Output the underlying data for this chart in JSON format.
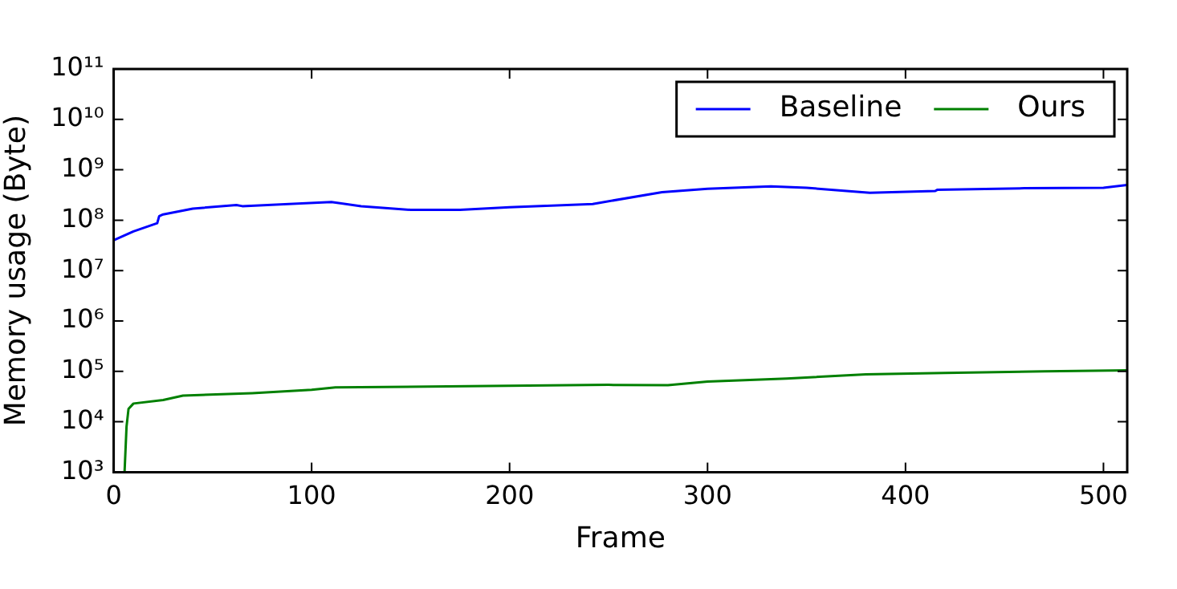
{
  "chart_data": {
    "type": "line",
    "xlabel": "Frame",
    "ylabel": "Memory usage (Byte)",
    "log": "y",
    "legend": "top right",
    "marker": "none",
    "line_style": "solid",
    "xlim": [
      0,
      512
    ],
    "xticks": [
      0,
      100,
      200,
      300,
      400,
      500
    ],
    "ylim": [
      1000,
      100000000000
    ],
    "yticks": [
      {
        "value": 1000,
        "label": "10³"
      },
      {
        "value": 10000,
        "label": "10⁴"
      },
      {
        "value": 100000,
        "label": "10⁵"
      },
      {
        "value": 1000000,
        "label": "10⁶"
      },
      {
        "value": 10000000,
        "label": "10⁷"
      },
      {
        "value": 100000000,
        "label": "10⁸"
      },
      {
        "value": 1000000000,
        "label": "10⁹"
      },
      {
        "value": 10000000000,
        "label": "10¹⁰"
      },
      {
        "value": 100000000000,
        "label": "10¹¹"
      }
    ],
    "series": [
      {
        "name": "Baseline",
        "color": "#0000ff",
        "x": [
          0,
          10,
          22,
          23,
          25,
          40,
          62,
          65,
          110,
          125,
          150,
          175,
          200,
          242,
          277,
          300,
          332,
          350,
          382,
          415,
          416,
          460,
          500,
          512
        ],
        "values": [
          40000000,
          60000000,
          87000000,
          120000000,
          130000000,
          170000000,
          200000000,
          190000000,
          230000000,
          190000000,
          160000000,
          160000000,
          180000000,
          210000000,
          360000000,
          420000000,
          470000000,
          440000000,
          350000000,
          380000000,
          400000000,
          430000000,
          440000000,
          500000000
        ]
      },
      {
        "name": "Ours",
        "color": "#008000",
        "x": [
          5.5,
          6.5,
          7.5,
          10,
          25,
          35,
          70,
          100,
          112,
          250,
          280,
          300,
          340,
          380,
          420,
          470,
          512
        ],
        "values": [
          1000,
          8000,
          18000,
          23000,
          27000,
          33000,
          37000,
          43000,
          48000,
          54000,
          53000,
          63000,
          72000,
          87000,
          93000,
          100000,
          105000
        ]
      }
    ]
  }
}
